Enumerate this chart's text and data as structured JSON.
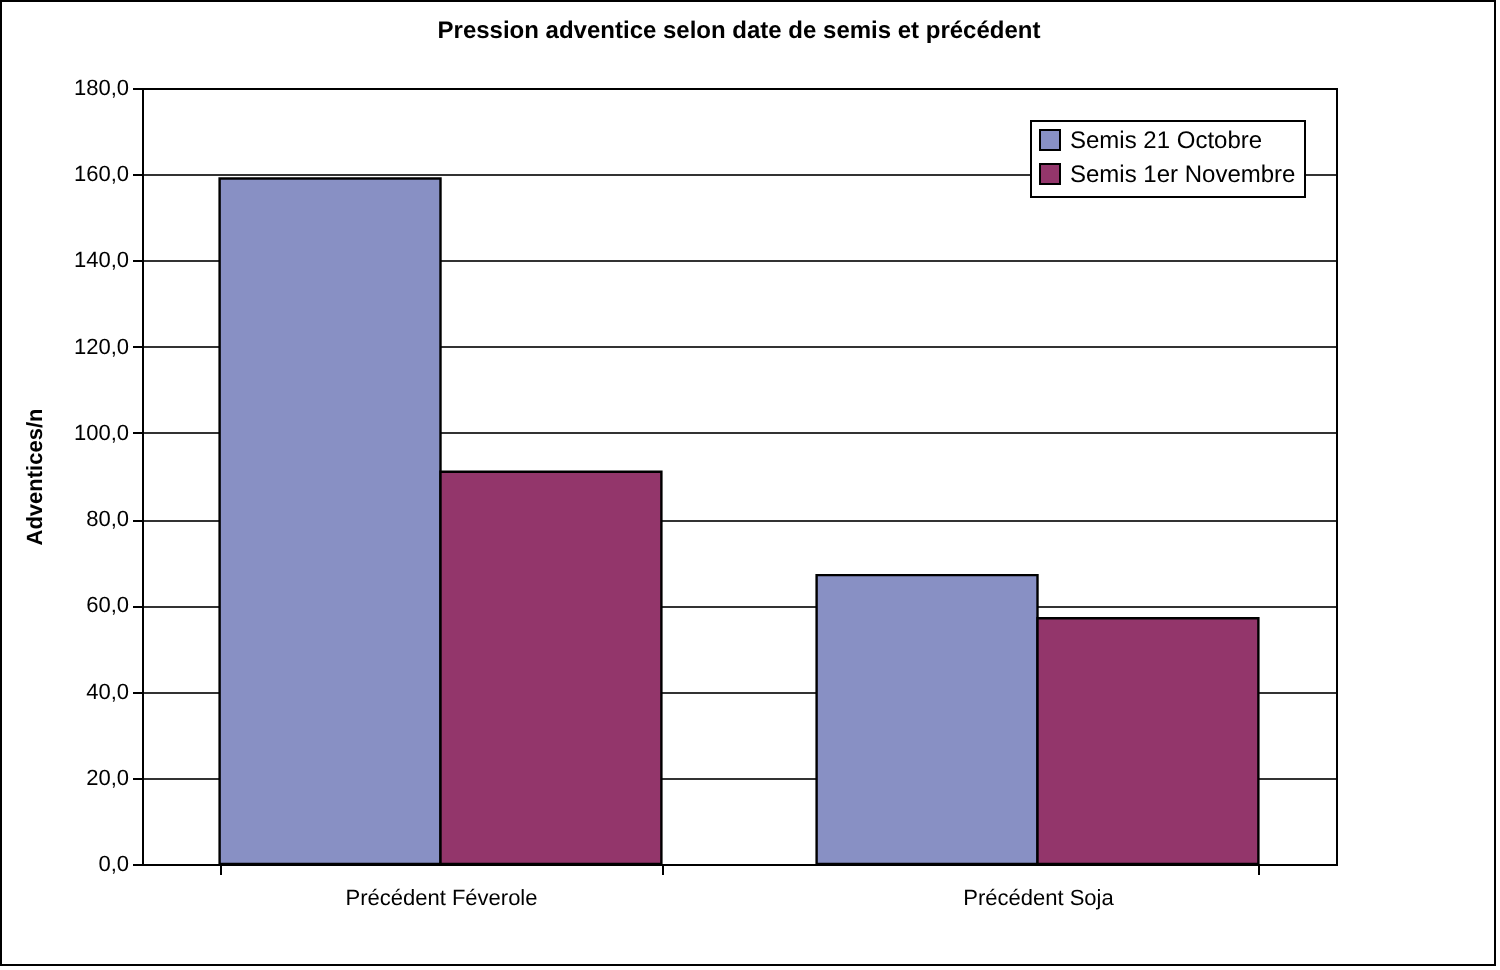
{
  "chart_data": {
    "type": "bar",
    "title": "Pression adventice selon date de semis et précédent",
    "ylabel": "Adventices/n",
    "categories": [
      "Précédent Féverole",
      "Précédent Soja"
    ],
    "series": [
      {
        "name": "Semis 21 Octobre",
        "color": "#8890c4",
        "values": [
          159,
          67
        ]
      },
      {
        "name": "Semis 1er Novembre",
        "color": "#93366b",
        "values": [
          91,
          57
        ]
      }
    ],
    "ylim": [
      0,
      180
    ],
    "yticks": [
      {
        "value": 0,
        "label": "0,0"
      },
      {
        "value": 20,
        "label": "20,0"
      },
      {
        "value": 40,
        "label": "40,0"
      },
      {
        "value": 60,
        "label": "60,0"
      },
      {
        "value": 80,
        "label": "80,0"
      },
      {
        "value": 100,
        "label": "100,0"
      },
      {
        "value": 120,
        "label": "120,0"
      },
      {
        "value": 140,
        "label": "140,0"
      },
      {
        "value": 160,
        "label": "160,0"
      },
      {
        "value": 180,
        "label": "180,0"
      }
    ],
    "grid": "y",
    "legend": "top right"
  }
}
